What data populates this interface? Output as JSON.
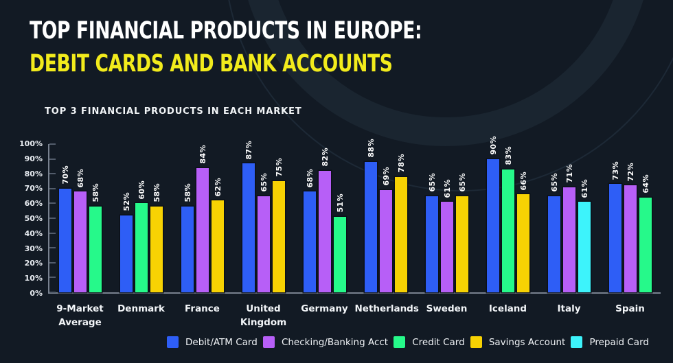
{
  "header": {
    "title_line1": "TOP FINANCIAL PRODUCTS IN EUROPE:",
    "title_line2": "DEBIT CARDS AND BANK ACCOUNTS"
  },
  "chart_data": {
    "type": "bar",
    "title": "TOP 3 FINANCIAL PRODUCTS IN EACH MARKET",
    "unit": "%",
    "ylim": [
      0,
      100
    ],
    "y_ticks": [
      "100%",
      "90%",
      "80%",
      "70%",
      "60%",
      "50%",
      "40%",
      "30%",
      "20%",
      "10%",
      "0%"
    ],
    "grid": "ticks-only",
    "legend_position": "bottom",
    "value_labels": "rotated-above-bars",
    "products": {
      "debit": {
        "label": "Debit/ATM Card",
        "color": "#2e5ef6"
      },
      "checking": {
        "label": "Checking/Banking Acct",
        "color": "#b75ff7"
      },
      "credit": {
        "label": "Credit Card",
        "color": "#26f98a"
      },
      "savings": {
        "label": "Savings Account",
        "color": "#f7d203"
      },
      "prepaid": {
        "label": "Prepaid Card",
        "color": "#3df3fb"
      }
    },
    "product_order": [
      "debit",
      "checking",
      "credit",
      "savings",
      "prepaid"
    ],
    "groups": [
      {
        "market": "9-Market Average",
        "bars": [
          {
            "product": "debit",
            "value": 70
          },
          {
            "product": "checking",
            "value": 68
          },
          {
            "product": "credit",
            "value": 58
          }
        ]
      },
      {
        "market": "Denmark",
        "bars": [
          {
            "product": "debit",
            "value": 52
          },
          {
            "product": "credit",
            "value": 60
          },
          {
            "product": "savings",
            "value": 58
          }
        ]
      },
      {
        "market": "France",
        "bars": [
          {
            "product": "debit",
            "value": 58
          },
          {
            "product": "checking",
            "value": 84
          },
          {
            "product": "savings",
            "value": 62
          }
        ]
      },
      {
        "market": "United Kingdom",
        "bars": [
          {
            "product": "debit",
            "value": 87
          },
          {
            "product": "checking",
            "value": 65
          },
          {
            "product": "savings",
            "value": 75
          }
        ]
      },
      {
        "market": "Germany",
        "bars": [
          {
            "product": "debit",
            "value": 68
          },
          {
            "product": "checking",
            "value": 82
          },
          {
            "product": "credit",
            "value": 51
          }
        ]
      },
      {
        "market": "Netherlands",
        "bars": [
          {
            "product": "debit",
            "value": 88
          },
          {
            "product": "checking",
            "value": 69
          },
          {
            "product": "savings",
            "value": 78
          }
        ]
      },
      {
        "market": "Sweden",
        "bars": [
          {
            "product": "debit",
            "value": 65
          },
          {
            "product": "checking",
            "value": 61
          },
          {
            "product": "savings",
            "value": 65
          }
        ]
      },
      {
        "market": "Iceland",
        "bars": [
          {
            "product": "debit",
            "value": 90
          },
          {
            "product": "credit",
            "value": 83
          },
          {
            "product": "savings",
            "value": 66
          }
        ]
      },
      {
        "market": "Italy",
        "bars": [
          {
            "product": "debit",
            "value": 65
          },
          {
            "product": "checking",
            "value": 71
          },
          {
            "product": "prepaid",
            "value": 61
          }
        ]
      },
      {
        "market": "Spain",
        "bars": [
          {
            "product": "debit",
            "value": 73
          },
          {
            "product": "checking",
            "value": 72
          },
          {
            "product": "credit",
            "value": 64
          }
        ]
      }
    ]
  },
  "theme": {
    "background": "#121a24",
    "arc_band": "#1a2530",
    "title_color": "#ffffff",
    "accent_yellow": "#f2eb1c",
    "axis_color": "#78818f",
    "tick_color": "#525c6b",
    "text_color": "#eef1f4"
  }
}
